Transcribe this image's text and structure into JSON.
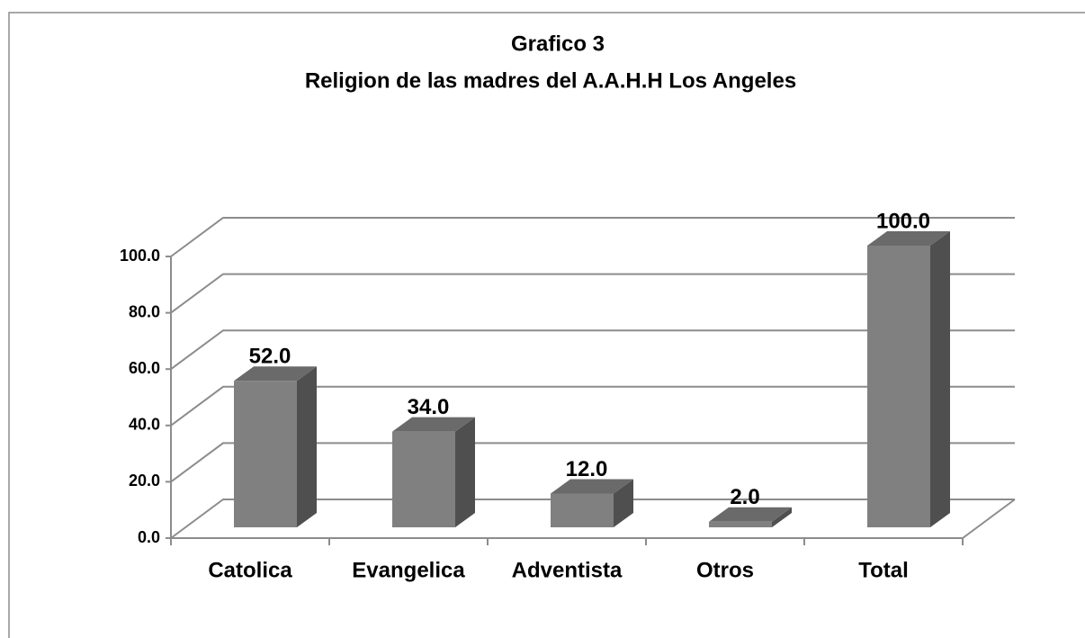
{
  "chart_data": {
    "type": "bar3d",
    "title": "Grafico 3",
    "subtitle": "Religion de las madres del A.A.H.H Los Angeles",
    "categories": [
      "Catolica",
      "Evangelica",
      "Adventista",
      "Otros",
      "Total"
    ],
    "values": [
      52,
      34,
      12,
      2,
      100
    ],
    "value_labels": [
      "52.0",
      "34.0",
      "12.0",
      "2.0",
      "100.0"
    ],
    "color": "#808080",
    "ylim": [
      0,
      100
    ],
    "yticks": [
      {
        "value": 0,
        "label": "0.0"
      },
      {
        "value": 20,
        "label": "20.0"
      },
      {
        "value": 40,
        "label": "40.0"
      },
      {
        "value": 60,
        "label": "60.0"
      },
      {
        "value": 80,
        "label": "80.0"
      },
      {
        "value": 100,
        "label": "100.0"
      }
    ],
    "grid": true
  }
}
